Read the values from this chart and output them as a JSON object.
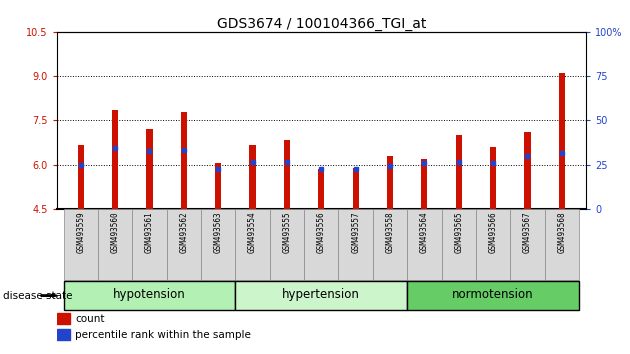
{
  "title": "GDS3674 / 100104366_TGI_at",
  "samples": [
    "GSM493559",
    "GSM493560",
    "GSM493561",
    "GSM493562",
    "GSM493563",
    "GSM493554",
    "GSM493555",
    "GSM493556",
    "GSM493557",
    "GSM493558",
    "GSM493564",
    "GSM493565",
    "GSM493566",
    "GSM493567",
    "GSM493568"
  ],
  "bar_heights": [
    6.65,
    7.85,
    7.2,
    7.8,
    6.05,
    6.65,
    6.85,
    5.85,
    5.9,
    6.3,
    6.2,
    7.0,
    6.6,
    7.1,
    9.1
  ],
  "blue_values": [
    6.0,
    6.55,
    6.45,
    6.5,
    5.85,
    6.1,
    6.1,
    5.85,
    5.85,
    5.95,
    6.05,
    6.1,
    6.05,
    6.3,
    6.4
  ],
  "groups": [
    {
      "label": "hypotension",
      "start": 0,
      "end": 5,
      "color": "#b3f0b3"
    },
    {
      "label": "hypertension",
      "start": 5,
      "end": 10,
      "color": "#ccf5cc"
    },
    {
      "label": "normotension",
      "start": 10,
      "end": 15,
      "color": "#66cc66"
    }
  ],
  "ylim": [
    4.5,
    10.5
  ],
  "y2lim": [
    0,
    100
  ],
  "yticks": [
    4.5,
    6.0,
    7.5,
    9.0,
    10.5
  ],
  "y2ticks": [
    0,
    25,
    50,
    75,
    100
  ],
  "gridlines": [
    6.0,
    7.5,
    9.0
  ],
  "bar_color": "#cc1100",
  "blue_color": "#2244cc",
  "bar_bottom": 4.5,
  "bar_width": 0.18,
  "title_fontsize": 10,
  "tick_fontsize": 7,
  "label_fontsize": 7.5,
  "group_label_fontsize": 8.5,
  "disease_state_label": "disease state"
}
